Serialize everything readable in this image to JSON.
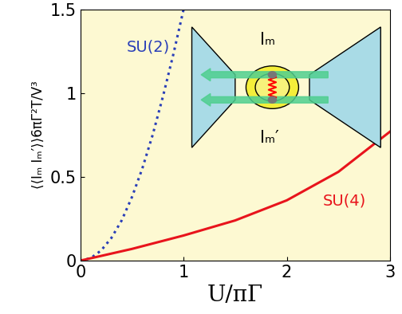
{
  "chart_data": {
    "type": "line",
    "x_label": "U/πΓ",
    "y_label": "⟨⟨Iₘ Iₘ′⟩⟩6πΓ²T/V³",
    "xlim": [
      0,
      3
    ],
    "xticks": [
      0,
      1,
      2,
      3
    ],
    "ylim": [
      0,
      1.5
    ],
    "yticks": [
      0,
      0.5,
      1,
      1.5
    ],
    "series": [
      {
        "name": "SU(2)",
        "color": "#2a3fb8",
        "line_style": "dotted",
        "x": [
          0,
          0.1,
          0.2,
          0.3,
          0.4,
          0.5,
          0.6,
          0.7,
          0.8,
          0.9,
          1.0
        ],
        "values": [
          0,
          0.015,
          0.06,
          0.135,
          0.24,
          0.38,
          0.55,
          0.75,
          0.98,
          1.23,
          1.5
        ]
      },
      {
        "name": "SU(4)",
        "color": "#e8141c",
        "line_style": "solid",
        "x": [
          0,
          0.5,
          1,
          1.5,
          2,
          2.5,
          3
        ],
        "values": [
          0,
          0.07,
          0.15,
          0.24,
          0.36,
          0.53,
          0.77
        ]
      }
    ],
    "annotations": [
      "Iₘ",
      "Iₘ′"
    ]
  }
}
